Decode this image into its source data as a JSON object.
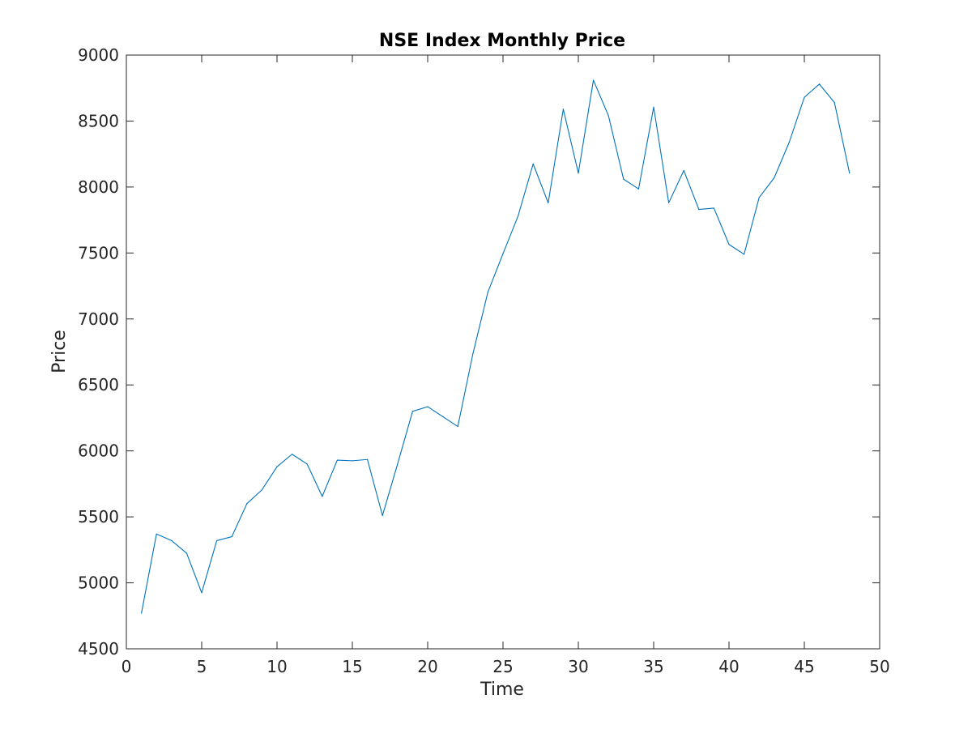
{
  "chart_data": {
    "type": "line",
    "title": "NSE Index Monthly Price",
    "xlabel": "Time",
    "ylabel": "Price",
    "xlim": [
      0,
      50
    ],
    "ylim": [
      4500,
      9000
    ],
    "xticks": [
      0,
      5,
      10,
      15,
      20,
      25,
      30,
      35,
      40,
      45,
      50
    ],
    "yticks": [
      4500,
      5000,
      5500,
      6000,
      6500,
      7000,
      7500,
      8000,
      8500,
      9000
    ],
    "grid": false,
    "legend": "none",
    "series": [
      {
        "color": "#0072bd",
        "x": [
          1,
          2,
          3,
          4,
          5,
          6,
          7,
          8,
          9,
          10,
          11,
          12,
          13,
          14,
          15,
          16,
          17,
          18,
          19,
          20,
          21,
          22,
          23,
          24,
          25,
          26,
          27,
          28,
          29,
          30,
          31,
          32,
          33,
          34,
          35,
          36,
          37,
          38,
          39,
          40,
          41,
          42,
          43,
          44,
          45,
          46,
          47,
          48
        ],
        "y": [
          4770,
          5370,
          5320,
          5225,
          4925,
          5320,
          5350,
          5600,
          5705,
          5880,
          5975,
          5900,
          5655,
          5930,
          5925,
          5935,
          5510,
          5900,
          6300,
          6335,
          6260,
          6185,
          6735,
          7205,
          7495,
          7780,
          8175,
          7880,
          8590,
          8105,
          8810,
          8540,
          8060,
          7985,
          8605,
          7880,
          8125,
          7830,
          7840,
          7565,
          7490,
          7920,
          8070,
          8340,
          8680,
          8780,
          8640,
          8105
        ]
      }
    ]
  }
}
